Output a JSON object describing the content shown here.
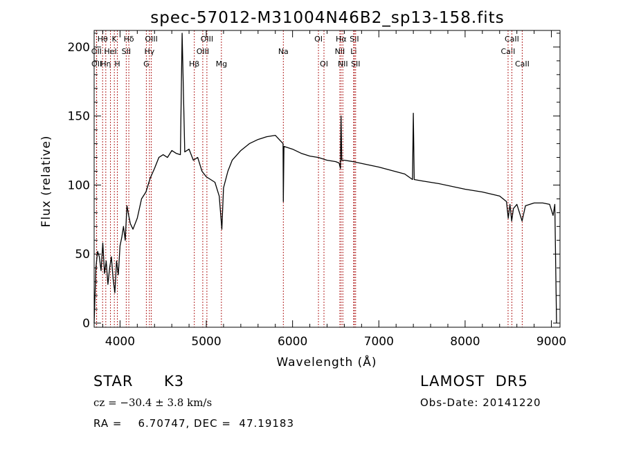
{
  "chart_data": {
    "type": "line",
    "title": "spec-57012-M31004N46B2_sp13-158.fits",
    "xlabel": "Wavelength (Å)",
    "ylabel": "Flux (relative)",
    "xlim": [
      3700,
      9100
    ],
    "ylim": [
      -3,
      212
    ],
    "xticks": [
      4000,
      5000,
      6000,
      7000,
      8000,
      9000
    ],
    "yticks": [
      0,
      50,
      100,
      150,
      200
    ],
    "grid": false,
    "line_color": "#000000",
    "marker_color": "#b22222",
    "line_markers": [
      {
        "label": "Hθ",
        "x": 3798,
        "row": 0
      },
      {
        "label": "OII",
        "x": 3727,
        "row": 1
      },
      {
        "label": "OII",
        "x": 3729,
        "row": 2
      },
      {
        "label": "Hη",
        "x": 3835,
        "row": 2
      },
      {
        "label": "HeI",
        "x": 3889,
        "row": 1
      },
      {
        "label": "K",
        "x": 3934,
        "row": 0
      },
      {
        "label": "H",
        "x": 3969,
        "row": 2
      },
      {
        "label": "SII",
        "x": 4072,
        "row": 1
      },
      {
        "label": "Hδ",
        "x": 4102,
        "row": 0
      },
      {
        "label": "G",
        "x": 4305,
        "row": 2
      },
      {
        "label": "Hγ",
        "x": 4341,
        "row": 1
      },
      {
        "label": "OIII",
        "x": 4363,
        "row": 0
      },
      {
        "label": "Hβ",
        "x": 4861,
        "row": 2
      },
      {
        "label": "OIII",
        "x": 4959,
        "row": 1
      },
      {
        "label": "OIII",
        "x": 5007,
        "row": 0
      },
      {
        "label": "Mg",
        "x": 5175,
        "row": 2
      },
      {
        "label": "Na",
        "x": 5893,
        "row": 1
      },
      {
        "label": "OI",
        "x": 6300,
        "row": 0
      },
      {
        "label": "OI",
        "x": 6364,
        "row": 2
      },
      {
        "label": "NII",
        "x": 6548,
        "row": 1
      },
      {
        "label": "Hα",
        "x": 6563,
        "row": 0
      },
      {
        "label": "NII",
        "x": 6583,
        "row": 2
      },
      {
        "label": "Li",
        "x": 6708,
        "row": 1
      },
      {
        "label": "SII",
        "x": 6716,
        "row": 0
      },
      {
        "label": "SII",
        "x": 6731,
        "row": 2
      },
      {
        "label": "CaII",
        "x": 8498,
        "row": 1
      },
      {
        "label": "CaII",
        "x": 8542,
        "row": 0
      },
      {
        "label": "CaII",
        "x": 8662,
        "row": 2
      }
    ],
    "spectrum": {
      "x": [
        3700,
        3720,
        3740,
        3760,
        3780,
        3800,
        3820,
        3840,
        3860,
        3880,
        3900,
        3920,
        3940,
        3960,
        3980,
        4000,
        4020,
        4040,
        4060,
        4080,
        4100,
        4120,
        4150,
        4200,
        4250,
        4300,
        4350,
        4400,
        4450,
        4500,
        4550,
        4600,
        4650,
        4700,
        4720,
        4750,
        4800,
        4850,
        4900,
        4950,
        5000,
        5050,
        5100,
        5150,
        5180,
        5200,
        5250,
        5300,
        5400,
        5500,
        5600,
        5700,
        5800,
        5890,
        5893,
        5900,
        6000,
        6100,
        6200,
        6300,
        6400,
        6500,
        6540,
        6555,
        6562,
        6570,
        6600,
        6700,
        7000,
        7300,
        7390,
        7400,
        7410,
        7500,
        7700,
        8000,
        8200,
        8400,
        8480,
        8500,
        8520,
        8540,
        8560,
        8600,
        8660,
        8700,
        8800,
        8900,
        8980,
        9000,
        9020,
        9040,
        9050,
        9060
      ],
      "y": [
        0,
        40,
        52,
        48,
        38,
        58,
        36,
        45,
        28,
        40,
        48,
        32,
        22,
        45,
        35,
        56,
        62,
        70,
        60,
        85,
        78,
        72,
        68,
        76,
        90,
        95,
        105,
        112,
        120,
        122,
        120,
        125,
        123,
        122,
        210,
        124,
        126,
        118,
        120,
        110,
        106,
        104,
        102,
        92,
        68,
        98,
        110,
        118,
        125,
        130,
        133,
        135,
        136,
        130,
        88,
        128,
        126,
        123,
        121,
        120,
        118,
        117,
        116,
        112,
        150,
        118,
        118,
        117,
        113,
        108,
        104,
        152,
        104,
        103,
        101,
        97,
        95,
        92,
        88,
        76,
        86,
        74,
        83,
        86,
        74,
        85,
        87,
        87,
        86,
        82,
        78,
        86,
        40,
        0
      ]
    }
  },
  "info": {
    "object": "STAR",
    "subclass": "K3",
    "redshift": "cz = −30.4 ± 3.8 km/s",
    "coords": "RA =    6.70747, DEC =  47.19183",
    "release": "LAMOST  DR5",
    "obs_date": "Obs-Date: 20141220"
  }
}
